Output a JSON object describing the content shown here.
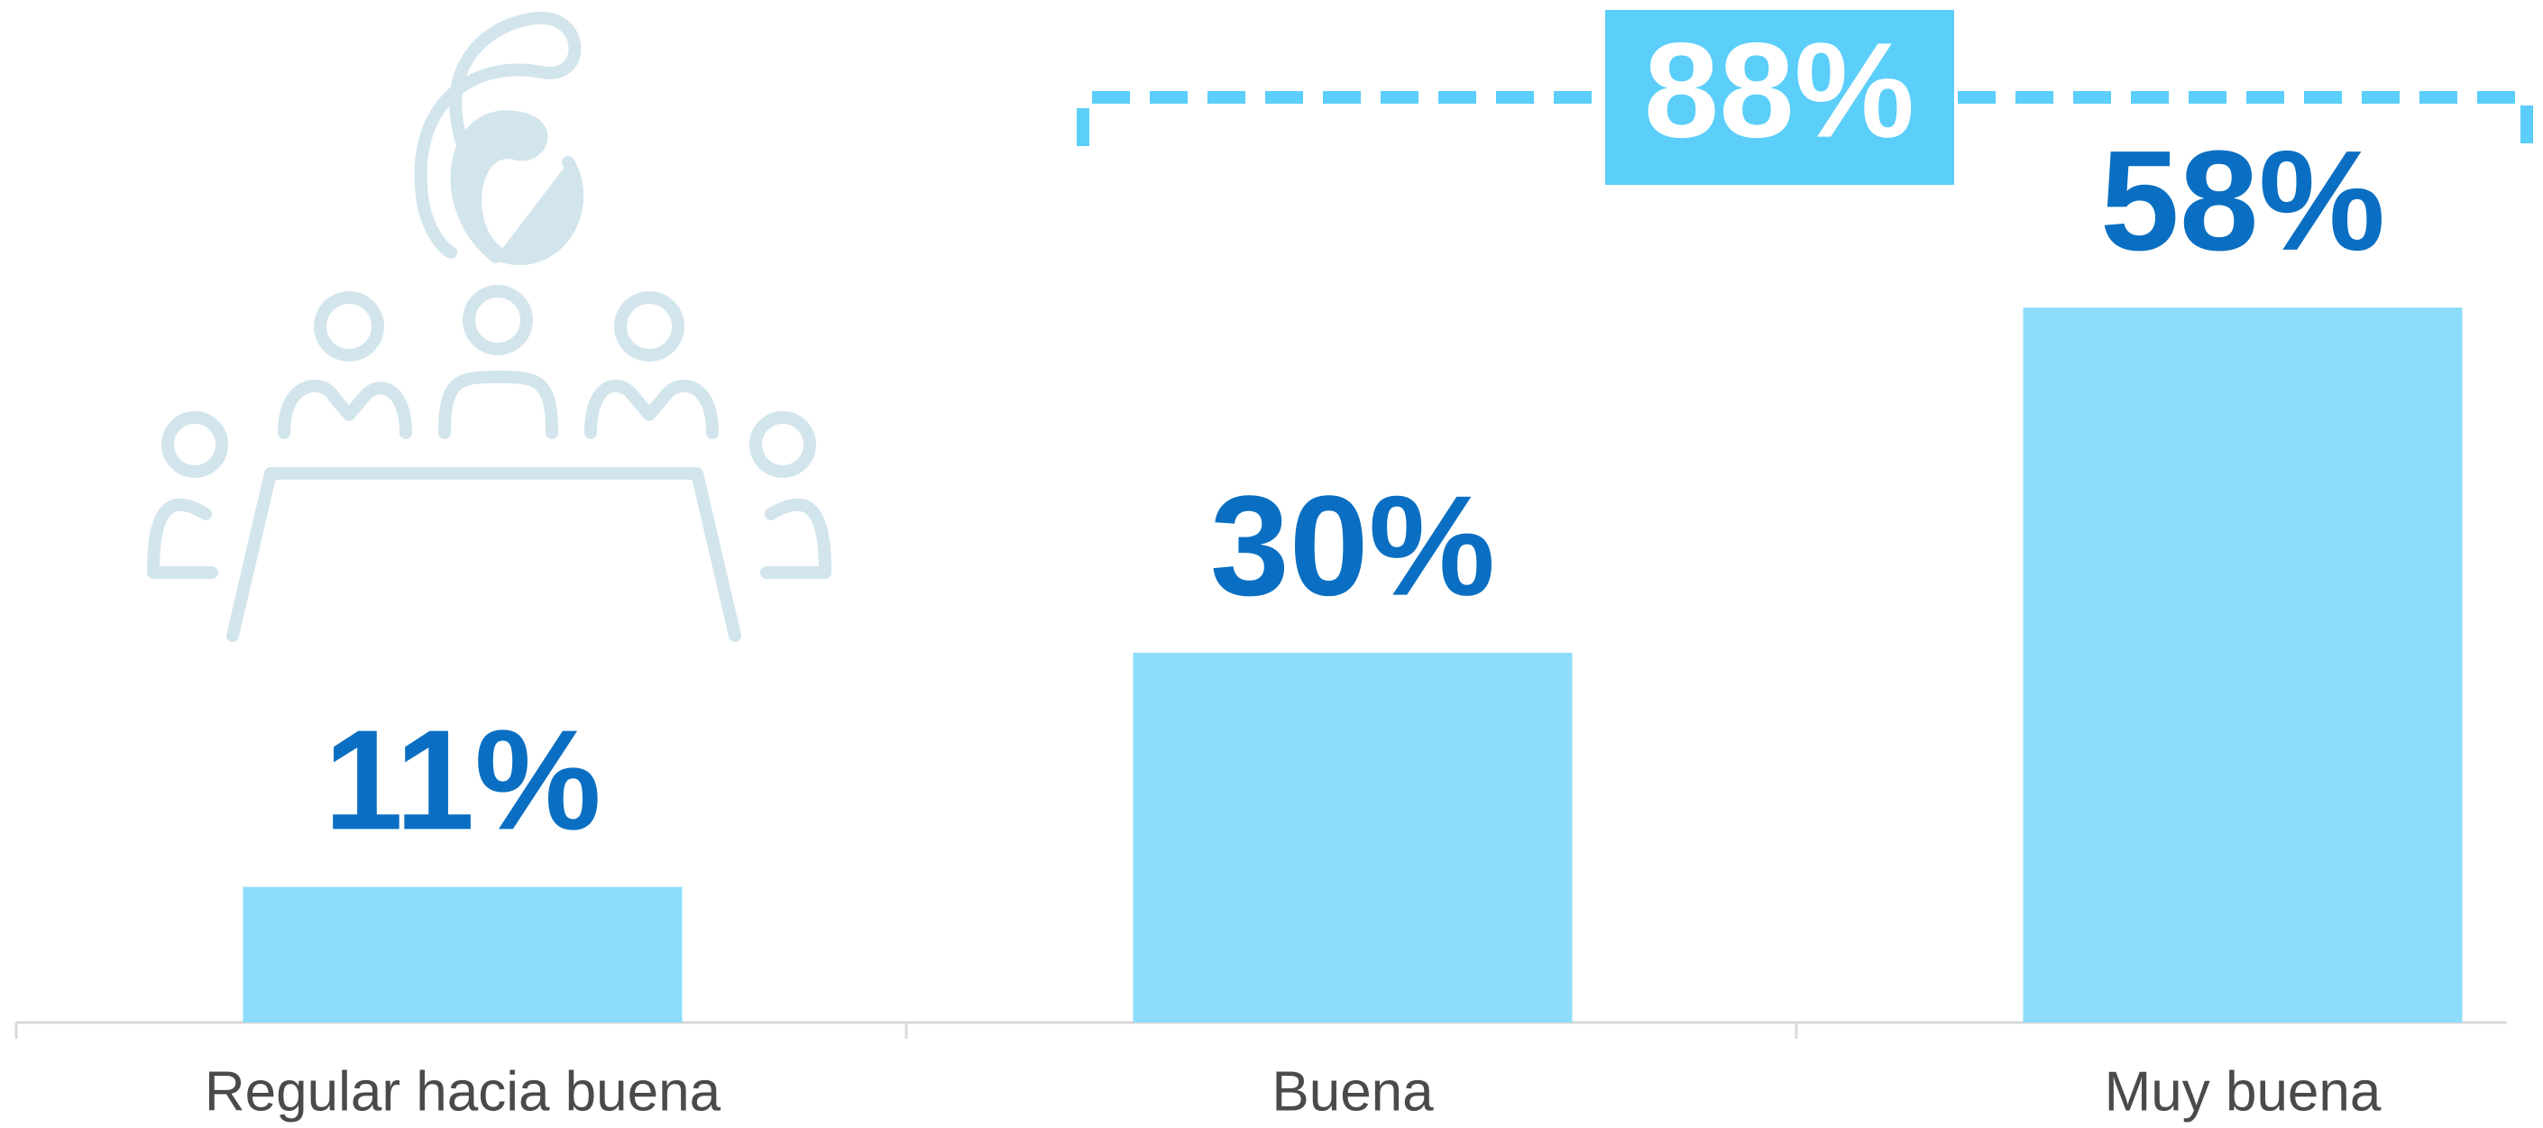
{
  "chart_data": {
    "type": "bar",
    "categories": [
      "Regular hacia buena",
      "Buena",
      "Muy buena"
    ],
    "values": [
      11,
      30,
      58
    ],
    "value_labels": [
      "11%",
      "30%",
      "58%"
    ],
    "color": "#8ddcfb",
    "annotation": "88%"
  }
}
